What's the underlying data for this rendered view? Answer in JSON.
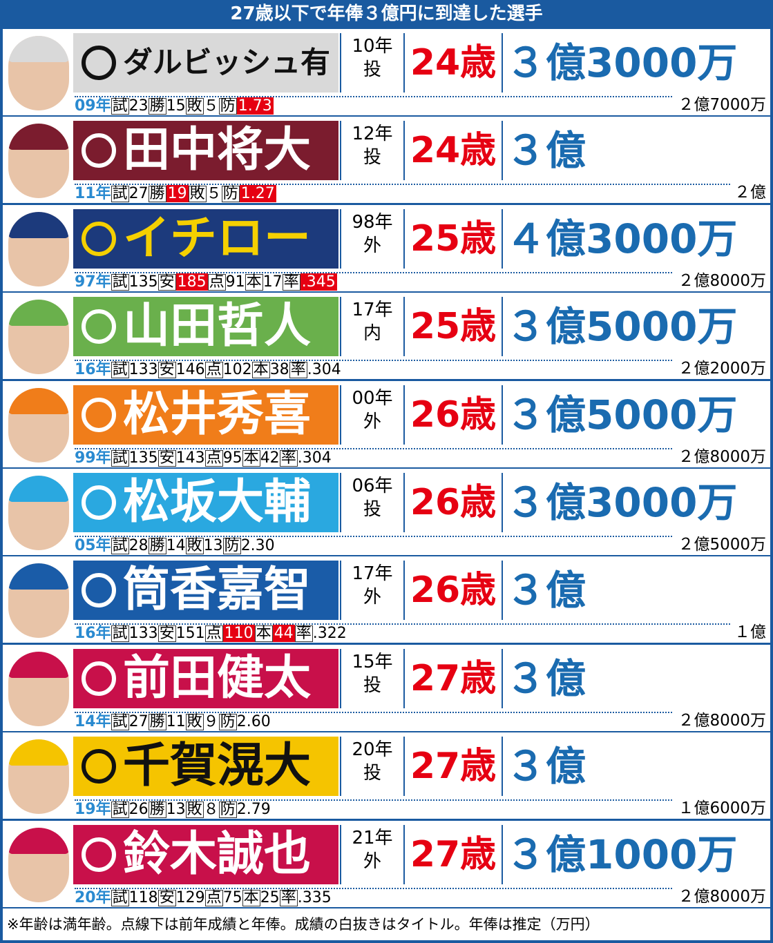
{
  "title": "27歳以下で年俸３億円に到達した選手",
  "rows": [
    {
      "name": "ダルビッシュ有",
      "season": "10年",
      "position": "投",
      "age": "24歳",
      "salary": "３億3000万",
      "banner_color": "#d9d9d9",
      "name_color": "#111111",
      "stats": {
        "year": "09年",
        "items": [
          {
            "label": "試",
            "value": "23"
          },
          {
            "label": "勝",
            "value": "15"
          },
          {
            "label": "敗",
            "value": "５"
          },
          {
            "label": "防",
            "value": "1.73",
            "highlight": true
          }
        ]
      },
      "prev_salary": "２億7000万"
    },
    {
      "name": "田中将大",
      "season": "12年",
      "position": "投",
      "age": "24歳",
      "salary": "３億",
      "banner_color": "#7b1c2e",
      "name_color": "#ffffff",
      "stats": {
        "year": "11年",
        "items": [
          {
            "label": "試",
            "value": "27"
          },
          {
            "label": "勝",
            "value": "19",
            "highlight": true
          },
          {
            "label": "敗",
            "value": "５"
          },
          {
            "label": "防",
            "value": "1.27",
            "highlight": true
          }
        ]
      },
      "prev_salary": "２億"
    },
    {
      "name": "イチロー",
      "season": "98年",
      "position": "外",
      "age": "25歳",
      "salary": "４億3000万",
      "banner_color": "#1c3a7c",
      "name_color": "#f5d000",
      "stats": {
        "year": "97年",
        "items": [
          {
            "label": "試",
            "value": "135"
          },
          {
            "label": "安",
            "value": "185",
            "highlight": true
          },
          {
            "label": "点",
            "value": "91"
          },
          {
            "label": "本",
            "value": "17"
          },
          {
            "label": "率",
            "value": ".345",
            "highlight": true
          }
        ]
      },
      "prev_salary": "２億8000万"
    },
    {
      "name": "山田哲人",
      "season": "17年",
      "position": "内",
      "age": "25歳",
      "salary": "３億5000万",
      "banner_color": "#6ab04c",
      "name_color": "#ffffff",
      "stats": {
        "year": "16年",
        "items": [
          {
            "label": "試",
            "value": "133"
          },
          {
            "label": "安",
            "value": "146"
          },
          {
            "label": "点",
            "value": "102"
          },
          {
            "label": "本",
            "value": "38"
          },
          {
            "label": "率",
            "value": ".304"
          }
        ]
      },
      "prev_salary": "２億2000万"
    },
    {
      "name": "松井秀喜",
      "season": "00年",
      "position": "外",
      "age": "26歳",
      "salary": "３億5000万",
      "banner_color": "#f07d1a",
      "name_color": "#ffffff",
      "stats": {
        "year": "99年",
        "items": [
          {
            "label": "試",
            "value": "135"
          },
          {
            "label": "安",
            "value": "143"
          },
          {
            "label": "点",
            "value": "95"
          },
          {
            "label": "本",
            "value": "42"
          },
          {
            "label": "率",
            "value": ".304"
          }
        ]
      },
      "prev_salary": "２億8000万"
    },
    {
      "name": "松坂大輔",
      "season": "06年",
      "position": "投",
      "age": "26歳",
      "salary": "３億3000万",
      "banner_color": "#2aa8e0",
      "name_color": "#ffffff",
      "stats": {
        "year": "05年",
        "items": [
          {
            "label": "試",
            "value": "28"
          },
          {
            "label": "勝",
            "value": "14"
          },
          {
            "label": "敗",
            "value": "13"
          },
          {
            "label": "防",
            "value": "2.30"
          }
        ]
      },
      "prev_salary": "２億5000万"
    },
    {
      "name": "筒香嘉智",
      "season": "17年",
      "position": "外",
      "age": "26歳",
      "salary": "３億",
      "banner_color": "#1a5ca8",
      "name_color": "#ffffff",
      "stats": {
        "year": "16年",
        "items": [
          {
            "label": "試",
            "value": "133"
          },
          {
            "label": "安",
            "value": "151"
          },
          {
            "label": "点",
            "value": "110",
            "highlight": true
          },
          {
            "label": "本",
            "value": "44",
            "highlight": true
          },
          {
            "label": "率",
            "value": ".322"
          }
        ]
      },
      "prev_salary": "１億"
    },
    {
      "name": "前田健太",
      "season": "15年",
      "position": "投",
      "age": "27歳",
      "salary": "３億",
      "banner_color": "#c8104a",
      "name_color": "#ffffff",
      "stats": {
        "year": "14年",
        "items": [
          {
            "label": "試",
            "value": "27"
          },
          {
            "label": "勝",
            "value": "11"
          },
          {
            "label": "敗",
            "value": "９"
          },
          {
            "label": "防",
            "value": "2.60"
          }
        ]
      },
      "prev_salary": "２億8000万"
    },
    {
      "name": "千賀滉大",
      "season": "20年",
      "position": "投",
      "age": "27歳",
      "salary": "３億",
      "banner_color": "#f5c400",
      "name_color": "#111111",
      "stats": {
        "year": "19年",
        "items": [
          {
            "label": "試",
            "value": "26"
          },
          {
            "label": "勝",
            "value": "13"
          },
          {
            "label": "敗",
            "value": "８"
          },
          {
            "label": "防",
            "value": "2.79"
          }
        ]
      },
      "prev_salary": "１億6000万"
    },
    {
      "name": "鈴木誠也",
      "season": "21年",
      "position": "外",
      "age": "27歳",
      "salary": "３億1000万",
      "banner_color": "#c8104a",
      "name_color": "#ffffff",
      "stats": {
        "year": "20年",
        "items": [
          {
            "label": "試",
            "value": "118"
          },
          {
            "label": "安",
            "value": "129"
          },
          {
            "label": "点",
            "value": "75"
          },
          {
            "label": "本",
            "value": "25"
          },
          {
            "label": "率",
            "value": ".335"
          }
        ]
      },
      "prev_salary": "２億8000万"
    }
  ],
  "footnote": "※年齢は満年齢。点線下は前年成績と年俸。成績の白抜きはタイトル。年俸は推定（万円）"
}
